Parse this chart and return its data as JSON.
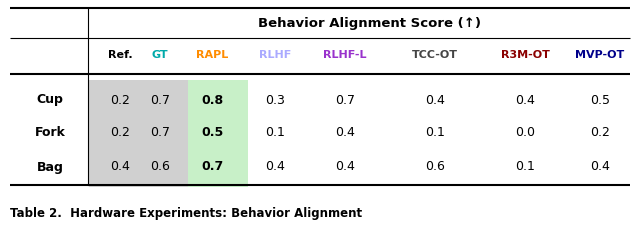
{
  "title": "Behavior Alignment Score (↑)",
  "caption": "Table 2.  Hardware Experiments: Behavior Alignment",
  "columns": [
    "",
    "Ref.",
    "GT",
    "RAPL",
    "RLHF",
    "RLHF-L",
    "TCC-OT",
    "R3M-OT",
    "MVP-OT"
  ],
  "col_colors": [
    "black",
    "black",
    "#00aaaa",
    "#ff8c00",
    "#aaaaff",
    "#9932cc",
    "#444444",
    "#8b0000",
    "#00008b"
  ],
  "rows": [
    [
      "Cup",
      "0.2",
      "0.7",
      "0.8",
      "0.3",
      "0.7",
      "0.4",
      "0.4",
      "0.5"
    ],
    [
      "Fork",
      "0.2",
      "0.7",
      "0.5",
      "0.1",
      "0.4",
      "0.1",
      "0.0",
      "0.2"
    ],
    [
      "Bag",
      "0.4",
      "0.6",
      "0.7",
      "0.4",
      "0.4",
      "0.6",
      "0.1",
      "0.4"
    ]
  ],
  "bg_ref_gt_color": "#d0d0d0",
  "bg_rapl_color": "#c8f0c8",
  "fig_width": 6.4,
  "fig_height": 2.27,
  "dpi": 100
}
